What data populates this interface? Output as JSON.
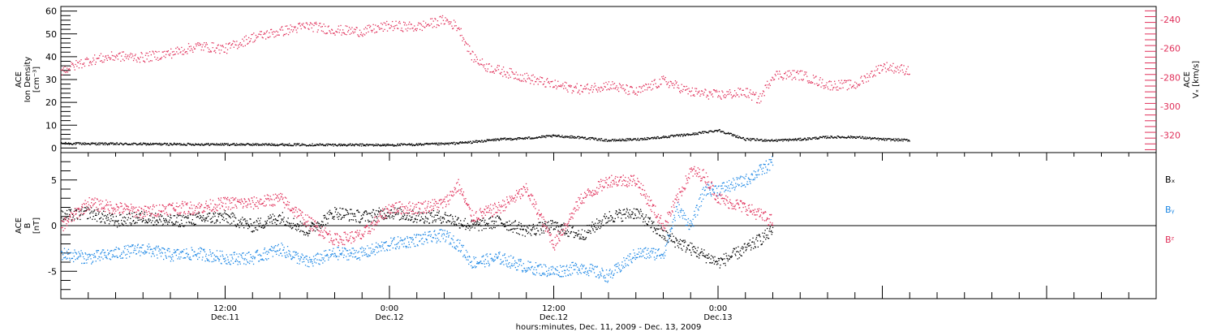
{
  "chart_data": [
    {
      "type": "scatter",
      "panel": "top",
      "ylabel": [
        "ACE",
        "Ion Density",
        "[cm⁻³]"
      ],
      "ylabel_right": [
        "ACE",
        "Vₓ [km/s]"
      ],
      "ylim": [
        -2,
        62
      ],
      "y_ticks": [
        0,
        10,
        20,
        30,
        40,
        50,
        60
      ],
      "y2lim": [
        -332,
        -231
      ],
      "y2_ticks": [
        -320,
        -300,
        -280,
        -260,
        -240
      ],
      "series_colors": {
        "density": "#000000",
        "vx": "#e0305a"
      },
      "series": [
        {
          "key": "density",
          "axis": "left",
          "x_hours": [
            0,
            4,
            8,
            12,
            16,
            20,
            24,
            28,
            30,
            32,
            34,
            36,
            38,
            40,
            42,
            44,
            46,
            48,
            50,
            52,
            54,
            56,
            58,
            60,
            62
          ],
          "values": [
            2.2,
            2.0,
            1.9,
            1.8,
            1.7,
            1.6,
            1.5,
            2.0,
            2.8,
            4.0,
            4.5,
            5.5,
            4.8,
            3.5,
            4.0,
            5.0,
            6.2,
            8.0,
            4.0,
            3.5,
            4.0,
            5.0,
            5.0,
            4.0,
            3.6
          ]
        },
        {
          "key": "vx",
          "axis": "right",
          "x_hours": [
            0,
            2,
            4,
            6,
            8,
            10,
            12,
            14,
            16,
            18,
            20,
            22,
            24,
            26,
            28,
            29,
            30,
            31,
            32,
            34,
            36,
            38,
            40,
            42,
            44,
            46,
            48,
            50,
            51,
            52,
            54,
            56,
            58,
            60,
            62
          ],
          "values": [
            -275,
            -268,
            -265,
            -266,
            -263,
            -258,
            -260,
            -252,
            -248,
            -244,
            -247,
            -248,
            -244,
            -245,
            -240,
            -245,
            -265,
            -272,
            -275,
            -280,
            -285,
            -288,
            -285,
            -290,
            -282,
            -290,
            -292,
            -290,
            -295,
            -278,
            -278,
            -285,
            -285,
            -272,
            -275
          ]
        }
      ]
    },
    {
      "type": "scatter",
      "panel": "bottom",
      "ylabel": [
        "ACE",
        "B",
        "[nT]"
      ],
      "ylim": [
        -8,
        8
      ],
      "y_ticks": [
        -5,
        0,
        5
      ],
      "xlabel": "hours:minutes, Dec. 11, 2009 - Dec. 13, 2009",
      "x_tick_labels": [
        {
          "hour": 12,
          "time": "12:00",
          "date": "Dec.11"
        },
        {
          "hour": 24,
          "time": "0:00",
          "date": "Dec.12"
        },
        {
          "hour": 36,
          "time": "12:00",
          "date": "Dec.12"
        },
        {
          "hour": 48,
          "time": "0:00",
          "date": "Dec.13"
        }
      ],
      "series_colors": {
        "bx": "#000000",
        "by": "#1e88e5",
        "bz": "#e0305a"
      },
      "series": [
        {
          "key": "bx",
          "name": "Bₓ",
          "x_hours": [
            0,
            2,
            4,
            6,
            8,
            10,
            12,
            14,
            16,
            18,
            20,
            22,
            24,
            26,
            28,
            30,
            32,
            34,
            36,
            38,
            40,
            42,
            44,
            46,
            48,
            50,
            52
          ],
          "values": [
            1.0,
            1.5,
            0.5,
            1.0,
            0.5,
            0.8,
            1.0,
            0.0,
            1.0,
            -0.5,
            1.5,
            1.0,
            1.5,
            1.0,
            1.0,
            0.0,
            0.5,
            -0.5,
            0.0,
            -1.0,
            1.0,
            1.5,
            -1.0,
            -2.5,
            -4.0,
            -2.5,
            -0.5
          ]
        },
        {
          "key": "by",
          "name": "Bᵧ",
          "x_hours": [
            0,
            2,
            4,
            6,
            8,
            10,
            12,
            14,
            16,
            18,
            20,
            22,
            24,
            26,
            28,
            29,
            30,
            32,
            34,
            36,
            38,
            40,
            42,
            44,
            45,
            46,
            47,
            48,
            50,
            52
          ],
          "values": [
            -3.0,
            -3.5,
            -3.0,
            -2.5,
            -3.2,
            -3.0,
            -3.5,
            -3.5,
            -2.5,
            -4.0,
            -3.0,
            -3.0,
            -2.0,
            -1.5,
            -1.0,
            -2.0,
            -4.0,
            -3.5,
            -4.5,
            -5.0,
            -4.5,
            -5.5,
            -3.0,
            -3.0,
            2.0,
            0.0,
            4.0,
            4.0,
            5.0,
            7.0
          ]
        },
        {
          "key": "bz",
          "name": "Bᶻ",
          "x_hours": [
            0,
            2,
            4,
            6,
            8,
            10,
            12,
            14,
            16,
            18,
            20,
            22,
            24,
            26,
            28,
            29,
            30,
            32,
            34,
            36,
            38,
            40,
            42,
            44,
            46,
            47,
            48,
            50,
            52
          ],
          "values": [
            0.0,
            2.5,
            2.0,
            1.5,
            2.0,
            2.0,
            2.5,
            2.5,
            3.0,
            0.5,
            -1.5,
            -1.0,
            2.0,
            2.0,
            2.5,
            4.5,
            1.0,
            2.0,
            4.0,
            -2.0,
            3.0,
            5.0,
            5.0,
            0.0,
            6.0,
            5.5,
            3.0,
            2.0,
            0.5
          ]
        }
      ]
    }
  ]
}
